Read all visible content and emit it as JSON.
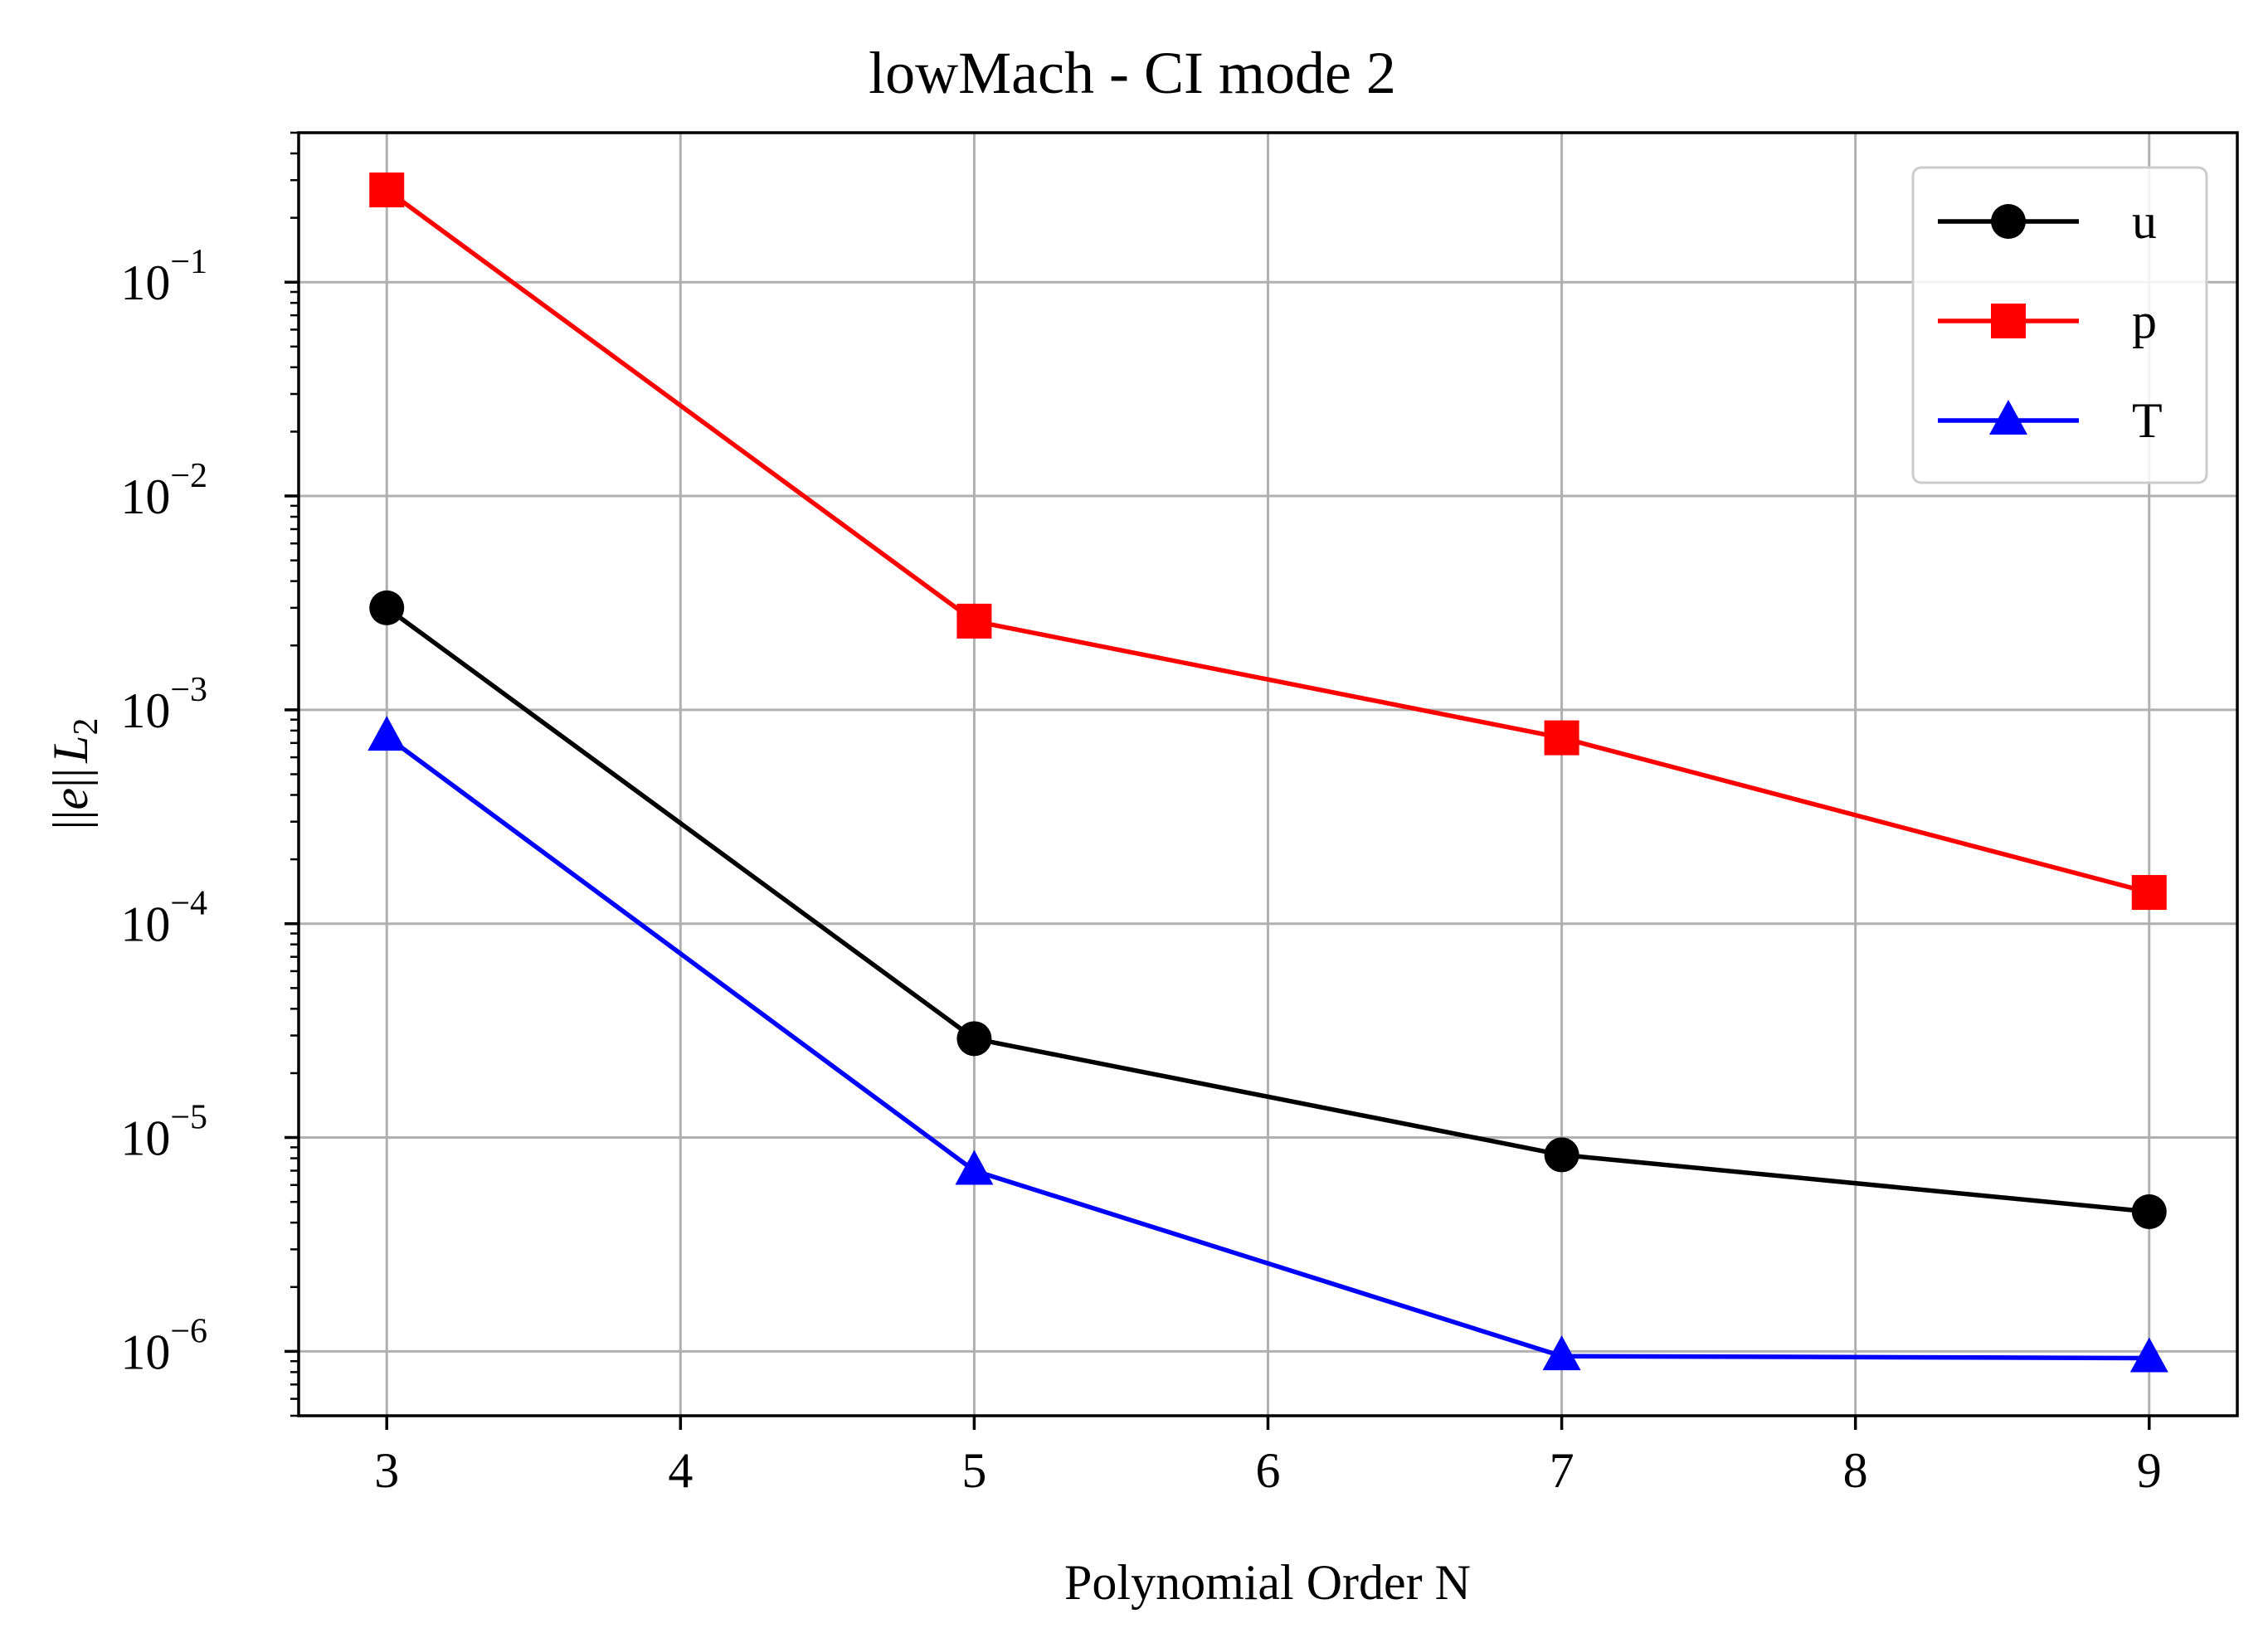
{
  "chart_data": {
    "type": "line",
    "title": "lowMach - CI mode 2",
    "xlabel": "Polynomial Order N",
    "ylabel_parts": {
      "norm_left": "||",
      "var": "e",
      "norm_right": "||",
      "sub_var": "L",
      "sub_index": "2"
    },
    "x_scale": "linear",
    "y_scale": "log",
    "xlim": [
      2.7,
      9.3
    ],
    "ylim": [
      5e-07,
      0.5
    ],
    "grid": true,
    "legend_position": "top-right",
    "x_ticks": [
      {
        "value": 3,
        "label": "3"
      },
      {
        "value": 4,
        "label": "4"
      },
      {
        "value": 5,
        "label": "5"
      },
      {
        "value": 6,
        "label": "6"
      },
      {
        "value": 7,
        "label": "7"
      },
      {
        "value": 8,
        "label": "8"
      },
      {
        "value": 9,
        "label": "9"
      }
    ],
    "y_ticks": [
      {
        "value": 0.1,
        "base": "10",
        "exp": "−1"
      },
      {
        "value": 0.01,
        "base": "10",
        "exp": "−2"
      },
      {
        "value": 0.001,
        "base": "10",
        "exp": "−3"
      },
      {
        "value": 0.0001,
        "base": "10",
        "exp": "−4"
      },
      {
        "value": 1e-05,
        "base": "10",
        "exp": "−5"
      },
      {
        "value": 1e-06,
        "base": "10",
        "exp": "−6"
      }
    ],
    "x": [
      3,
      5,
      7,
      9
    ],
    "series": [
      {
        "name": "u",
        "color": "#000000",
        "marker": "circle",
        "values": [
          0.003,
          2.9e-05,
          8.3e-06,
          4.5e-06
        ]
      },
      {
        "name": "p",
        "color": "#ff0000",
        "marker": "square",
        "values": [
          0.27,
          0.0026,
          0.00074,
          0.00014
        ]
      },
      {
        "name": "T",
        "color": "#0000ff",
        "marker": "triangle",
        "values": [
          0.00075,
          7e-06,
          9.5e-07,
          9.3e-07
        ]
      }
    ]
  }
}
